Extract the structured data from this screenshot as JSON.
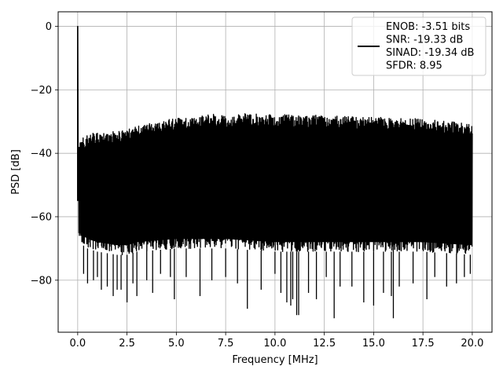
{
  "chart_data": {
    "type": "line",
    "title": "",
    "xlabel": "Frequency [MHz]",
    "ylabel": "PSD [dB]",
    "xlim": [
      -0.99,
      21.0
    ],
    "ylim": [
      -96.4,
      4.6
    ],
    "xticks": [
      0.0,
      2.5,
      5.0,
      7.5,
      10.0,
      12.5,
      15.0,
      17.5,
      20.0
    ],
    "xtick_labels": [
      "0.0",
      "2.5",
      "5.0",
      "7.5",
      "10.0",
      "12.5",
      "15.0",
      "17.5",
      "20.0"
    ],
    "yticks": [
      0,
      -20,
      -40,
      -60,
      -80
    ],
    "ytick_labels": [
      "0",
      "−20",
      "−40",
      "−60",
      "−80"
    ],
    "grid": true,
    "legend": {
      "placement": "upper-right",
      "entries": [
        "ENOB: -3.51 bits",
        "SNR: -19.33 dB",
        "SINAD: -19.34 dB",
        "SFDR: 8.95"
      ]
    },
    "series": [
      {
        "color": "#000000",
        "peak": {
          "x": 0.0,
          "y": 0.0
        },
        "upper_envelope": [
          [
            0.05,
            -36
          ],
          [
            0.5,
            -34
          ],
          [
            1.0,
            -33.5
          ],
          [
            2.0,
            -33
          ],
          [
            2.5,
            -32.5
          ],
          [
            3.0,
            -31.5
          ],
          [
            4.0,
            -30
          ],
          [
            5.0,
            -29
          ],
          [
            6.0,
            -28.5
          ],
          [
            6.5,
            -27.5
          ],
          [
            7.5,
            -28
          ],
          [
            8.5,
            -27.5
          ],
          [
            10.0,
            -27.5
          ],
          [
            11.0,
            -28
          ],
          [
            12.5,
            -28
          ],
          [
            14.0,
            -28.5
          ],
          [
            15.0,
            -28.5
          ],
          [
            16.0,
            -29
          ],
          [
            17.0,
            -29
          ],
          [
            18.0,
            -29.5
          ],
          [
            19.0,
            -30
          ],
          [
            20.0,
            -31
          ]
        ],
        "dense_lower": [
          [
            0.05,
            -68
          ],
          [
            0.5,
            -70
          ],
          [
            1.0,
            -71
          ],
          [
            2.0,
            -72
          ],
          [
            2.5,
            -72
          ],
          [
            3.0,
            -71
          ],
          [
            5.0,
            -70
          ],
          [
            7.5,
            -70
          ],
          [
            10.0,
            -71
          ],
          [
            12.5,
            -71
          ],
          [
            15.0,
            -71
          ],
          [
            17.5,
            -71
          ],
          [
            20.0,
            -72
          ]
        ],
        "lower_spikes": [
          [
            0.3,
            -78
          ],
          [
            0.5,
            -81
          ],
          [
            0.8,
            -80
          ],
          [
            1.0,
            -79
          ],
          [
            1.2,
            -83
          ],
          [
            1.5,
            -82
          ],
          [
            1.8,
            -85
          ],
          [
            2.0,
            -83
          ],
          [
            2.2,
            -83
          ],
          [
            2.5,
            -87
          ],
          [
            2.8,
            -81
          ],
          [
            3.0,
            -85
          ],
          [
            3.5,
            -80
          ],
          [
            3.8,
            -84
          ],
          [
            4.2,
            -78
          ],
          [
            4.7,
            -79
          ],
          [
            4.9,
            -86
          ],
          [
            5.5,
            -79
          ],
          [
            6.2,
            -85
          ],
          [
            6.8,
            -80
          ],
          [
            7.5,
            -79
          ],
          [
            8.1,
            -81
          ],
          [
            8.6,
            -89
          ],
          [
            9.3,
            -83
          ],
          [
            10.0,
            -78
          ],
          [
            10.3,
            -84
          ],
          [
            10.6,
            -87
          ],
          [
            10.8,
            -88
          ],
          [
            10.9,
            -86
          ],
          [
            11.1,
            -91
          ],
          [
            11.2,
            -91
          ],
          [
            11.7,
            -84
          ],
          [
            12.1,
            -86
          ],
          [
            12.6,
            -79
          ],
          [
            13.0,
            -92
          ],
          [
            13.3,
            -82
          ],
          [
            13.9,
            -82
          ],
          [
            14.5,
            -87
          ],
          [
            15.0,
            -88
          ],
          [
            15.5,
            -84
          ],
          [
            15.9,
            -85
          ],
          [
            16.0,
            -92
          ],
          [
            16.3,
            -82
          ],
          [
            17.0,
            -81
          ],
          [
            17.7,
            -86
          ],
          [
            18.1,
            -79
          ],
          [
            18.7,
            -82
          ],
          [
            19.2,
            -81
          ],
          [
            19.6,
            -79
          ],
          [
            19.9,
            -78
          ]
        ]
      }
    ]
  }
}
